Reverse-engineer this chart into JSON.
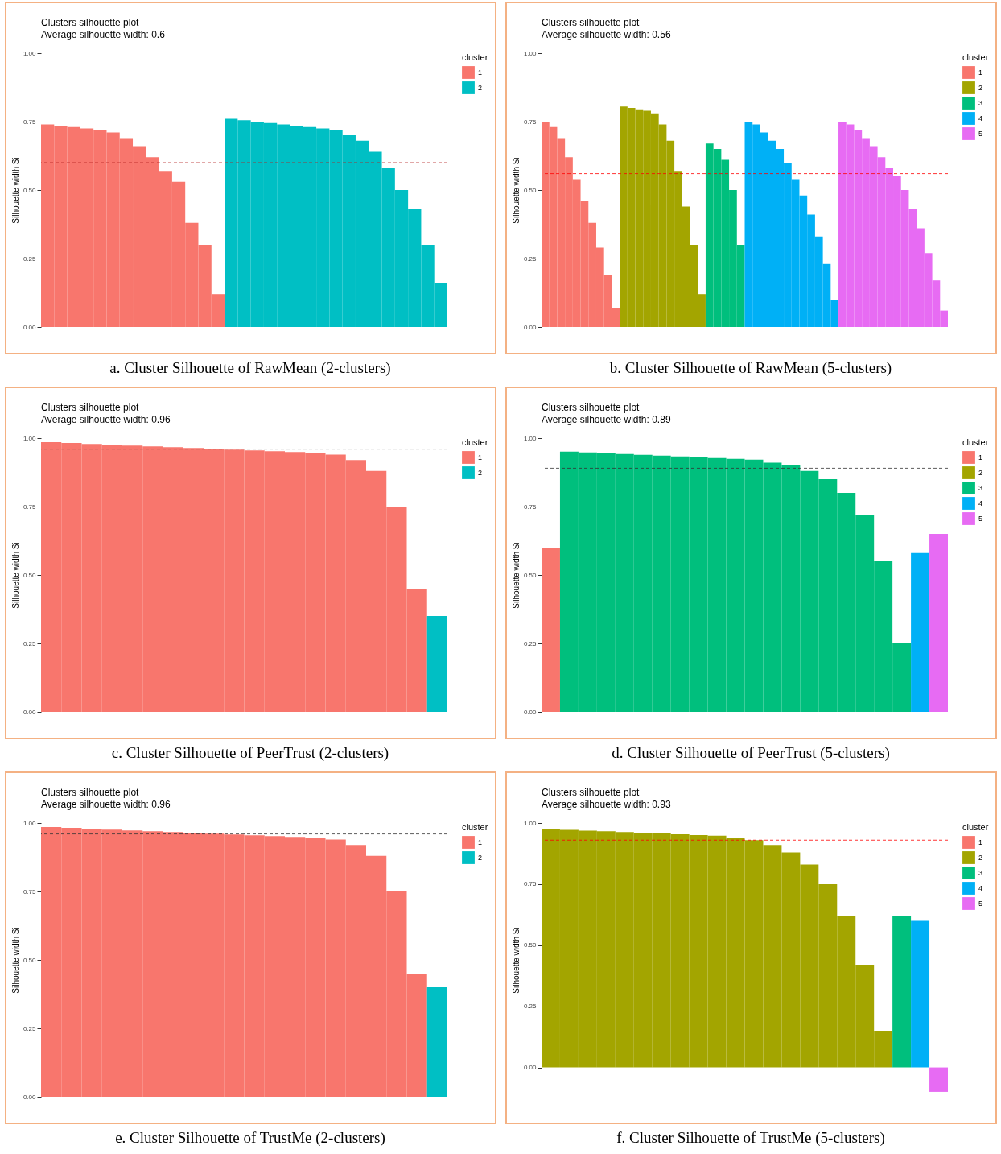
{
  "chart_data": [
    {
      "type": "bar",
      "title": "Clusters silhouette plot",
      "subtitle": "Average silhouette width: 0.6",
      "ylabel": "Silhouette width Si",
      "legend_title": "cluster",
      "legend": "right",
      "tick_labels": "y",
      "annotations": [
        "a. Cluster Silhouette of RawMean (2-clusters)"
      ],
      "categories": [
        null,
        null,
        null,
        null,
        null,
        null,
        null,
        null,
        null,
        null,
        null,
        null,
        null,
        null,
        null,
        null,
        null,
        null,
        null,
        null,
        null,
        null,
        null,
        null,
        null,
        null,
        null,
        null,
        null,
        null,
        null
      ],
      "series": [
        {
          "name": "1",
          "color": "#f8766d",
          "values": [
            0.74,
            0.735,
            0.73,
            0.725,
            0.72,
            0.71,
            0.69,
            0.66,
            0.62,
            0.57,
            0.53,
            0.38,
            0.3,
            0.12,
            null,
            null,
            null,
            null,
            null,
            null,
            null,
            null,
            null,
            null,
            null,
            null,
            null,
            null,
            null,
            null,
            null
          ]
        },
        {
          "name": "2",
          "color": "#00bfc4",
          "values": [
            null,
            null,
            null,
            null,
            null,
            null,
            null,
            null,
            null,
            null,
            null,
            null,
            null,
            null,
            0.76,
            0.755,
            0.75,
            0.745,
            0.74,
            0.735,
            0.73,
            0.725,
            0.72,
            0.7,
            0.68,
            0.64,
            0.58,
            0.5,
            0.43,
            0.3,
            0.16
          ]
        }
      ],
      "ylim": [
        0,
        1
      ],
      "yticks": [
        {
          "value": 0,
          "label": "0.00"
        },
        {
          "value": 0.25,
          "label": "0.25"
        },
        {
          "value": 0.5,
          "label": "0.50"
        },
        {
          "value": 0.75,
          "label": "0.75"
        },
        {
          "value": 1,
          "label": "1.00"
        }
      ],
      "ref_lines": [
        {
          "axis": "y",
          "value": 0.6,
          "color": "#b22222",
          "line_style": "dashed"
        }
      ]
    },
    {
      "type": "bar",
      "title": "Clusters silhouette plot",
      "subtitle": "Average silhouette width: 0.56",
      "ylabel": "Silhouette width Si",
      "legend_title": "cluster",
      "legend": "right",
      "tick_labels": "y",
      "annotations": [
        "b. Cluster Silhouette of RawMean (5-clusters)"
      ],
      "categories": [
        null,
        null,
        null,
        null,
        null,
        null,
        null,
        null,
        null,
        null,
        null,
        null,
        null,
        null,
        null,
        null,
        null,
        null,
        null,
        null,
        null,
        null,
        null,
        null,
        null,
        null,
        null,
        null,
        null,
        null,
        null,
        null,
        null,
        null,
        null,
        null,
        null,
        null,
        null,
        null,
        null,
        null,
        null,
        null,
        null,
        null,
        null,
        null,
        null,
        null,
        null,
        null
      ],
      "series": [
        {
          "name": "1",
          "color": "#f8766d",
          "values": [
            0.75,
            0.73,
            0.69,
            0.62,
            0.54,
            0.46,
            0.38,
            0.29,
            0.19,
            0.07,
            null,
            null,
            null,
            null,
            null,
            null,
            null,
            null,
            null,
            null,
            null,
            null,
            null,
            null,
            null,
            null,
            null,
            null,
            null,
            null,
            null,
            null,
            null,
            null,
            null,
            null,
            null,
            null,
            null,
            null,
            null,
            null,
            null,
            null,
            null,
            null,
            null,
            null,
            null,
            null,
            null,
            null
          ]
        },
        {
          "name": "2",
          "color": "#a3a500",
          "values": [
            null,
            null,
            null,
            null,
            null,
            null,
            null,
            null,
            null,
            null,
            0.805,
            0.8,
            0.795,
            0.79,
            0.78,
            0.74,
            0.68,
            0.57,
            0.44,
            0.3,
            0.12,
            null,
            null,
            null,
            null,
            null,
            null,
            null,
            null,
            null,
            null,
            null,
            null,
            null,
            null,
            null,
            null,
            null,
            null,
            null,
            null,
            null,
            null,
            null,
            null,
            null,
            null,
            null,
            null,
            null,
            null,
            null
          ]
        },
        {
          "name": "3",
          "color": "#00bf7d",
          "values": [
            null,
            null,
            null,
            null,
            null,
            null,
            null,
            null,
            null,
            null,
            null,
            null,
            null,
            null,
            null,
            null,
            null,
            null,
            null,
            null,
            null,
            0.67,
            0.65,
            0.61,
            0.5,
            0.3,
            null,
            null,
            null,
            null,
            null,
            null,
            null,
            null,
            null,
            null,
            null,
            null,
            null,
            null,
            null,
            null,
            null,
            null,
            null,
            null,
            null,
            null,
            null,
            null,
            null,
            null
          ]
        },
        {
          "name": "4",
          "color": "#00b0f6",
          "values": [
            null,
            null,
            null,
            null,
            null,
            null,
            null,
            null,
            null,
            null,
            null,
            null,
            null,
            null,
            null,
            null,
            null,
            null,
            null,
            null,
            null,
            null,
            null,
            null,
            null,
            null,
            0.75,
            0.74,
            0.71,
            0.68,
            0.65,
            0.6,
            0.54,
            0.48,
            0.41,
            0.33,
            0.23,
            0.1,
            null,
            null,
            null,
            null,
            null,
            null,
            null,
            null,
            null,
            null,
            null,
            null,
            null,
            null
          ]
        },
        {
          "name": "5",
          "color": "#e76bf3",
          "values": [
            null,
            null,
            null,
            null,
            null,
            null,
            null,
            null,
            null,
            null,
            null,
            null,
            null,
            null,
            null,
            null,
            null,
            null,
            null,
            null,
            null,
            null,
            null,
            null,
            null,
            null,
            null,
            null,
            null,
            null,
            null,
            null,
            null,
            null,
            null,
            null,
            null,
            null,
            0.75,
            0.74,
            0.72,
            0.69,
            0.66,
            0.62,
            0.58,
            0.55,
            0.5,
            0.43,
            0.36,
            0.27,
            0.17,
            0.06
          ]
        }
      ],
      "ylim": [
        0,
        1
      ],
      "yticks": [
        {
          "value": 0,
          "label": "0.00"
        },
        {
          "value": 0.25,
          "label": "0.25"
        },
        {
          "value": 0.5,
          "label": "0.50"
        },
        {
          "value": 0.75,
          "label": "0.75"
        },
        {
          "value": 1,
          "label": "1.00"
        }
      ],
      "ref_lines": [
        {
          "axis": "y",
          "value": 0.56,
          "color": "#ff0000",
          "line_style": "dashed"
        }
      ]
    },
    {
      "type": "bar",
      "title": "Clusters silhouette plot",
      "subtitle": "Average silhouette width: 0.96",
      "ylabel": "Silhouette width Si",
      "legend_title": "cluster",
      "legend": "right",
      "tick_labels": "y",
      "annotations": [
        "c. Cluster Silhouette of PeerTrust (2-clusters)"
      ],
      "categories": [
        null,
        null,
        null,
        null,
        null,
        null,
        null,
        null,
        null,
        null,
        null,
        null,
        null,
        null,
        null,
        null,
        null,
        null,
        null,
        null
      ],
      "series": [
        {
          "name": "1",
          "color": "#f8766d",
          "values": [
            0.985,
            0.982,
            0.979,
            0.976,
            0.973,
            0.97,
            0.967,
            0.964,
            0.961,
            0.958,
            0.955,
            0.952,
            0.949,
            0.946,
            0.94,
            0.92,
            0.88,
            0.75,
            0.45,
            null
          ]
        },
        {
          "name": "2",
          "color": "#00bfc4",
          "values": [
            null,
            null,
            null,
            null,
            null,
            null,
            null,
            null,
            null,
            null,
            null,
            null,
            null,
            null,
            null,
            null,
            null,
            null,
            null,
            0.35
          ]
        }
      ],
      "ylim": [
        0,
        1
      ],
      "yticks": [
        {
          "value": 0,
          "label": "0.00"
        },
        {
          "value": 0.25,
          "label": "0.25"
        },
        {
          "value": 0.5,
          "label": "0.50"
        },
        {
          "value": 0.75,
          "label": "0.75"
        },
        {
          "value": 1,
          "label": "1.00"
        }
      ],
      "ref_lines": [
        {
          "axis": "y",
          "value": 0.96,
          "color": "#333333",
          "line_style": "dashed"
        }
      ]
    },
    {
      "type": "bar",
      "title": "Clusters silhouette plot",
      "subtitle": "Average silhouette width: 0.89",
      "ylabel": "Silhouette width Si",
      "legend_title": "cluster",
      "legend": "right",
      "tick_labels": "y",
      "annotations": [
        "d. Cluster Silhouette of PeerTrust (5-clusters)"
      ],
      "categories": [
        null,
        null,
        null,
        null,
        null,
        null,
        null,
        null,
        null,
        null,
        null,
        null,
        null,
        null,
        null,
        null,
        null,
        null,
        null,
        null,
        null,
        null
      ],
      "series": [
        {
          "name": "1",
          "color": "#f8766d",
          "values": [
            0.6,
            null,
            null,
            null,
            null,
            null,
            null,
            null,
            null,
            null,
            null,
            null,
            null,
            null,
            null,
            null,
            null,
            null,
            null,
            null,
            null,
            null
          ]
        },
        {
          "name": "2",
          "color": "#a3a500",
          "values": [
            null,
            null,
            null,
            null,
            null,
            null,
            null,
            null,
            null,
            null,
            null,
            null,
            null,
            null,
            null,
            null,
            null,
            null,
            null,
            null,
            null,
            null
          ]
        },
        {
          "name": "3",
          "color": "#00bf7d",
          "values": [
            null,
            0.951,
            0.948,
            0.945,
            0.942,
            0.939,
            0.936,
            0.933,
            0.93,
            0.927,
            0.924,
            0.921,
            0.91,
            0.9,
            0.88,
            0.85,
            0.8,
            0.72,
            0.55,
            0.25,
            null,
            null
          ]
        },
        {
          "name": "4",
          "color": "#00b0f6",
          "values": [
            null,
            null,
            null,
            null,
            null,
            null,
            null,
            null,
            null,
            null,
            null,
            null,
            null,
            null,
            null,
            null,
            null,
            null,
            null,
            null,
            0.58,
            null
          ]
        },
        {
          "name": "5",
          "color": "#e76bf3",
          "values": [
            null,
            null,
            null,
            null,
            null,
            null,
            null,
            null,
            null,
            null,
            null,
            null,
            null,
            null,
            null,
            null,
            null,
            null,
            null,
            null,
            null,
            0.65
          ]
        }
      ],
      "ylim": [
        0,
        1
      ],
      "yticks": [
        {
          "value": 0,
          "label": "0.00"
        },
        {
          "value": 0.25,
          "label": "0.25"
        },
        {
          "value": 0.5,
          "label": "0.50"
        },
        {
          "value": 0.75,
          "label": "0.75"
        },
        {
          "value": 1,
          "label": "1.00"
        }
      ],
      "ref_lines": [
        {
          "axis": "y",
          "value": 0.89,
          "color": "#333333",
          "line_style": "dashed"
        }
      ]
    },
    {
      "type": "bar",
      "title": "Clusters silhouette plot",
      "subtitle": "Average silhouette width: 0.96",
      "ylabel": "Silhouette width Si",
      "legend_title": "cluster",
      "legend": "right",
      "tick_labels": "y",
      "annotations": [
        "e. Cluster Silhouette of TrustMe (2-clusters)"
      ],
      "categories": [
        null,
        null,
        null,
        null,
        null,
        null,
        null,
        null,
        null,
        null,
        null,
        null,
        null,
        null,
        null,
        null,
        null,
        null,
        null,
        null
      ],
      "series": [
        {
          "name": "1",
          "color": "#f8766d",
          "values": [
            0.985,
            0.982,
            0.979,
            0.976,
            0.973,
            0.97,
            0.967,
            0.964,
            0.961,
            0.958,
            0.955,
            0.952,
            0.949,
            0.946,
            0.94,
            0.92,
            0.88,
            0.75,
            0.45,
            null
          ]
        },
        {
          "name": "2",
          "color": "#00bfc4",
          "values": [
            null,
            null,
            null,
            null,
            null,
            null,
            null,
            null,
            null,
            null,
            null,
            null,
            null,
            null,
            null,
            null,
            null,
            null,
            null,
            0.4
          ]
        }
      ],
      "ylim": [
        0,
        1
      ],
      "yticks": [
        {
          "value": 0,
          "label": "0.00"
        },
        {
          "value": 0.25,
          "label": "0.25"
        },
        {
          "value": 0.5,
          "label": "0.50"
        },
        {
          "value": 0.75,
          "label": "0.75"
        },
        {
          "value": 1,
          "label": "1.00"
        }
      ],
      "ref_lines": [
        {
          "axis": "y",
          "value": 0.96,
          "color": "#333333",
          "line_style": "dashed"
        }
      ]
    },
    {
      "type": "bar",
      "title": "Clusters silhouette plot",
      "subtitle": "Average silhouette width: 0.93",
      "ylabel": "Silhouette width Si",
      "legend_title": "cluster",
      "legend": "right",
      "tick_labels": "y",
      "annotations": [
        "f. Cluster Silhouette of TrustMe (5-clusters)"
      ],
      "categories": [
        null,
        null,
        null,
        null,
        null,
        null,
        null,
        null,
        null,
        null,
        null,
        null,
        null,
        null,
        null,
        null,
        null,
        null,
        null,
        null,
        null,
        null
      ],
      "series": [
        {
          "name": "1",
          "color": "#f8766d",
          "values": [
            null,
            null,
            null,
            null,
            null,
            null,
            null,
            null,
            null,
            null,
            null,
            null,
            null,
            null,
            null,
            null,
            null,
            null,
            null,
            null,
            null,
            null
          ]
        },
        {
          "name": "2",
          "color": "#a3a500",
          "values": [
            0.975,
            0.972,
            0.969,
            0.966,
            0.963,
            0.96,
            0.957,
            0.954,
            0.951,
            0.948,
            0.94,
            0.93,
            0.91,
            0.88,
            0.83,
            0.75,
            0.62,
            0.42,
            0.15,
            null,
            null,
            null
          ]
        },
        {
          "name": "3",
          "color": "#00bf7d",
          "values": [
            null,
            null,
            null,
            null,
            null,
            null,
            null,
            null,
            null,
            null,
            null,
            null,
            null,
            null,
            null,
            null,
            null,
            null,
            null,
            0.62,
            null,
            null
          ]
        },
        {
          "name": "4",
          "color": "#00b0f6",
          "values": [
            null,
            null,
            null,
            null,
            null,
            null,
            null,
            null,
            null,
            null,
            null,
            null,
            null,
            null,
            null,
            null,
            null,
            null,
            null,
            null,
            0.6,
            null
          ]
        },
        {
          "name": "5",
          "color": "#e76bf3",
          "values": [
            null,
            null,
            null,
            null,
            null,
            null,
            null,
            null,
            null,
            null,
            null,
            null,
            null,
            null,
            null,
            null,
            null,
            null,
            null,
            null,
            null,
            -0.1
          ]
        }
      ],
      "ylim": [
        -0.12,
        1
      ],
      "yticks": [
        {
          "value": 0,
          "label": "0.00"
        },
        {
          "value": 0.25,
          "label": "0.25"
        },
        {
          "value": 0.5,
          "label": "0.50"
        },
        {
          "value": 0.75,
          "label": "0.75"
        },
        {
          "value": 1,
          "label": "1.00"
        }
      ],
      "ref_lines": [
        {
          "axis": "y",
          "value": 0.93,
          "color": "#ff0000",
          "line_style": "dashed"
        }
      ]
    }
  ]
}
